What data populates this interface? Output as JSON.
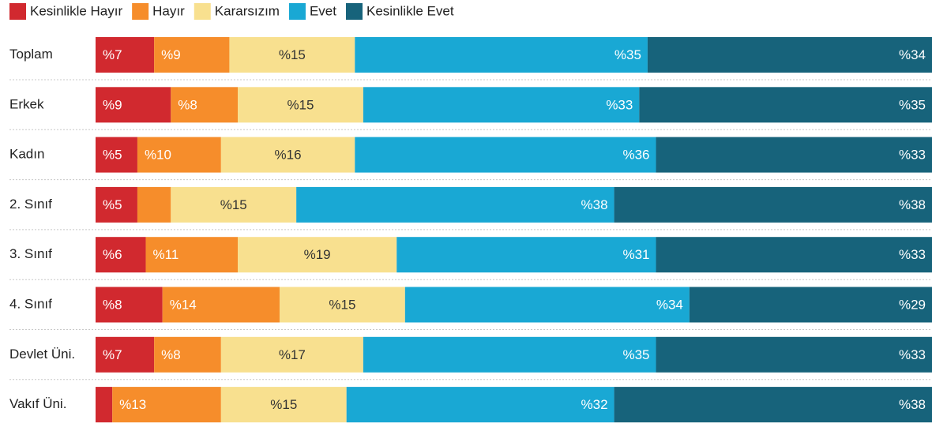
{
  "chart_data": {
    "type": "stacked_barh",
    "categories": [
      "Toplam",
      "Erkek",
      "Kadın",
      "2. Sınıf",
      "3. Sınıf",
      "4. Sınıf",
      "Devlet Üni.",
      "Vakıf Üni."
    ],
    "xlim": [
      0,
      100
    ],
    "series": [
      {
        "name": "Kesinlikle Hayır",
        "color": "#d1292f",
        "label_color": "#ffffff",
        "values": [
          7,
          9,
          5,
          5,
          6,
          8,
          7,
          2
        ],
        "value_labels": [
          "%7",
          "%9",
          "%5",
          "%5",
          "%6",
          "%8",
          "%7",
          null
        ]
      },
      {
        "name": "Hayır",
        "color": "#f68d2b",
        "label_color": "#ffffff",
        "values": [
          9,
          8,
          10,
          4,
          11,
          14,
          8,
          13
        ],
        "value_labels": [
          "%9",
          "%8",
          "%10",
          null,
          "%11",
          "%14",
          "%8",
          "%13"
        ]
      },
      {
        "name": "Kararsızım",
        "color": "#f8e08f",
        "label_color": "#333333",
        "values": [
          15,
          15,
          16,
          15,
          19,
          15,
          17,
          15
        ],
        "value_labels": [
          "%15",
          "%15",
          "%16",
          "%15",
          "%19",
          "%15",
          "%17",
          "%15"
        ]
      },
      {
        "name": "Evet",
        "color": "#19a8d4",
        "label_color": "#ffffff",
        "values": [
          35,
          33,
          36,
          38,
          31,
          34,
          35,
          32
        ],
        "value_labels": [
          "%35",
          "%33",
          "%36",
          "%38",
          "%31",
          "%34",
          "%35",
          "%32"
        ]
      },
      {
        "name": "Kesinlikle Evet",
        "color": "#17637b",
        "label_color": "#ffffff",
        "values": [
          34,
          35,
          33,
          38,
          33,
          29,
          33,
          38
        ],
        "value_labels": [
          "%34",
          "%35",
          "%33",
          "%38",
          "%33",
          "%29",
          "%33",
          "%38"
        ]
      }
    ]
  }
}
